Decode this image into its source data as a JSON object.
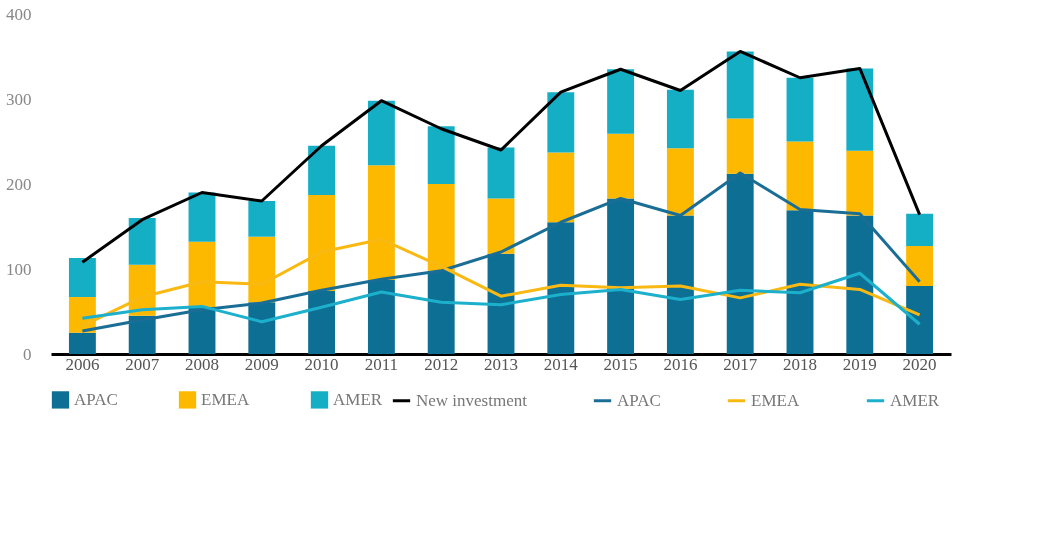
{
  "chart_data": {
    "type": "bar",
    "stacked": true,
    "categories": [
      "2006",
      "2007",
      "2008",
      "2009",
      "2010",
      "2011",
      "2012",
      "2013",
      "2014",
      "2015",
      "2016",
      "2017",
      "2018",
      "2019",
      "2020"
    ],
    "ylim": [
      0,
      400
    ],
    "yticks": [
      0,
      100,
      200,
      300,
      400
    ],
    "grid": false,
    "legend": "bottom",
    "series": [
      {
        "name": "APAC",
        "color": "#0e6f94",
        "values": [
          25,
          45,
          55,
          61,
          74,
          87,
          98,
          118,
          155,
          183,
          163,
          212,
          169,
          163,
          80
        ]
      },
      {
        "name": "EMEA",
        "color": "#fdb900",
        "values": [
          42,
          60,
          77,
          77,
          113,
          135,
          102,
          65,
          82,
          76,
          79,
          65,
          81,
          76,
          47
        ]
      },
      {
        "name": "AMER",
        "color": "#14aec5",
        "values": [
          46,
          55,
          58,
          42,
          58,
          76,
          68,
          60,
          71,
          76,
          69,
          79,
          75,
          97,
          38
        ]
      },
      {
        "name": "New investment",
        "type": "line",
        "color": "#000000",
        "values": [
          108,
          158,
          190,
          180,
          245,
          298,
          265,
          240,
          308,
          335,
          310,
          356,
          325,
          336,
          164
        ]
      },
      {
        "name": "APAC",
        "type": "line",
        "color": "#1a6e96",
        "values": [
          27,
          40,
          52,
          60,
          75,
          88,
          98,
          120,
          155,
          183,
          163,
          213,
          170,
          165,
          85
        ]
      },
      {
        "name": "EMEA",
        "type": "line",
        "color": "#f9b912",
        "values": [
          33,
          67,
          85,
          82,
          120,
          135,
          103,
          68,
          81,
          78,
          80,
          66,
          82,
          76,
          46
        ]
      },
      {
        "name": "AMER",
        "type": "line",
        "color": "#1cb0cc",
        "values": [
          42,
          52,
          56,
          38,
          55,
          73,
          61,
          58,
          70,
          76,
          64,
          75,
          72,
          95,
          35
        ]
      }
    ]
  }
}
